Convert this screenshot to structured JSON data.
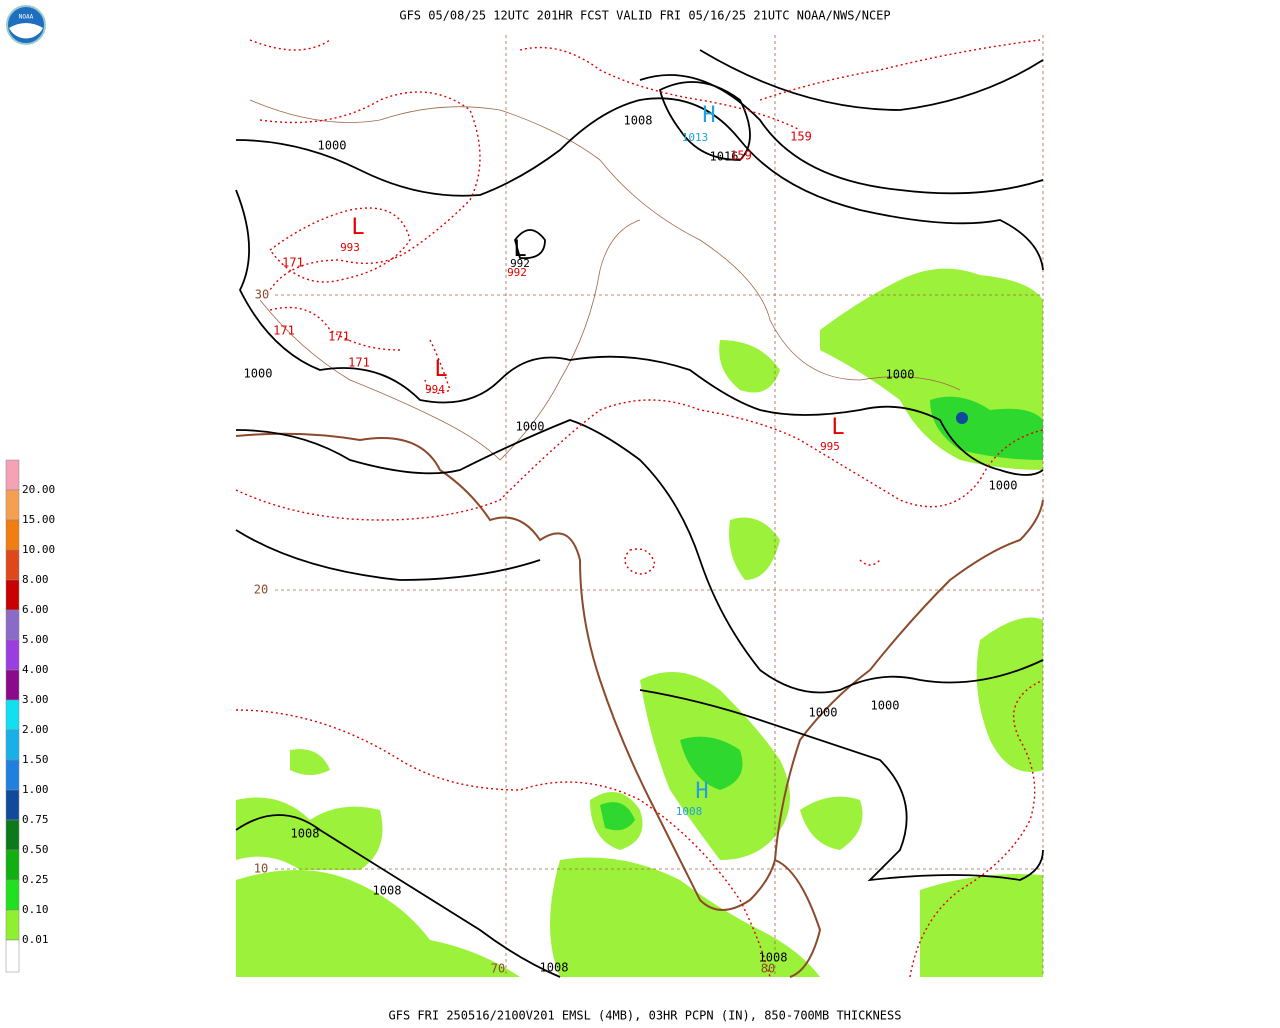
{
  "header": {
    "title": "GFS 05/08/25 12UTC 201HR FCST VALID FRI 05/16/25 21UTC NOAA/NWS/NCEP"
  },
  "footer": {
    "caption": "GFS FRI 250516/2100V201 EMSL (4MB), 03HR PCPN (IN), 850-700MB THICKNESS"
  },
  "logo": {
    "text": "NOAA"
  },
  "legend": {
    "labels": [
      "20.00",
      "15.00",
      "10.00",
      "8.00",
      "6.00",
      "5.00",
      "4.00",
      "3.00",
      "2.00",
      "1.50",
      "1.00",
      "0.75",
      "0.50",
      "0.25",
      "0.10",
      "0.01"
    ],
    "colors": [
      "#f4a3b4",
      "#f5a050",
      "#f27d10",
      "#e0481a",
      "#c80000",
      "#8a6cc8",
      "#9a3ee0",
      "#8a0a8a",
      "#10e0f0",
      "#18b0e8",
      "#2080e0",
      "#104a9a",
      "#0a7a1a",
      "#10b010",
      "#20e020",
      "#90f030",
      "#ffffff"
    ]
  },
  "map": {
    "labels": [
      {
        "text": "1000"
      },
      {
        "text": "1008"
      },
      {
        "text": "H"
      },
      {
        "text": "1013"
      },
      {
        "text": "1016"
      },
      {
        "text": "159"
      },
      {
        "text": "159"
      },
      {
        "text": "L"
      },
      {
        "text": "993"
      },
      {
        "text": "171"
      },
      {
        "text": "171"
      },
      {
        "text": "171"
      },
      {
        "text": "171"
      },
      {
        "text": "30"
      },
      {
        "text": "L"
      },
      {
        "text": "992"
      },
      {
        "text": "992"
      },
      {
        "text": "L"
      },
      {
        "text": "994"
      },
      {
        "text": "1000"
      },
      {
        "text": "1000"
      },
      {
        "text": "1000"
      },
      {
        "text": "L"
      },
      {
        "text": "995"
      },
      {
        "text": "1000"
      },
      {
        "text": "20"
      },
      {
        "text": "1000"
      },
      {
        "text": "1000"
      },
      {
        "text": "H"
      },
      {
        "text": "1008"
      },
      {
        "text": "1008"
      },
      {
        "text": "1008"
      },
      {
        "text": "10"
      },
      {
        "text": "70"
      },
      {
        "text": "80"
      },
      {
        "text": "1008"
      },
      {
        "text": "1008"
      }
    ]
  }
}
